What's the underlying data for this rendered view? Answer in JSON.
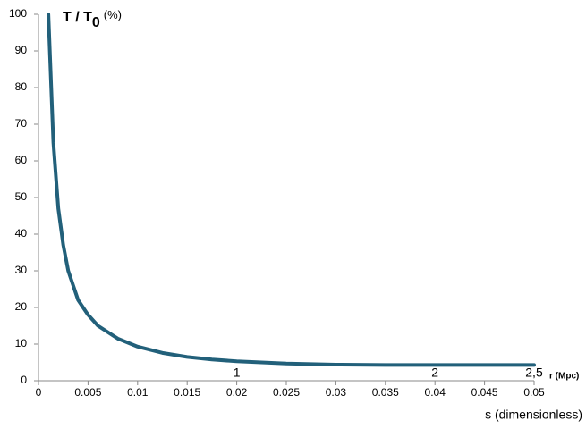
{
  "chart_data": {
    "type": "line",
    "y_label": "T / T",
    "y_label_sub": "0",
    "y_label_unit": "(%)",
    "x_label": "s (dimensionless)",
    "x2_label": "r (Mpc)",
    "x": [
      0.001,
      0.0015,
      0.002,
      0.0025,
      0.003,
      0.004,
      0.005,
      0.006,
      0.008,
      0.01,
      0.0125,
      0.015,
      0.0175,
      0.02,
      0.025,
      0.03,
      0.035,
      0.04,
      0.045,
      0.05
    ],
    "series": [
      {
        "name": "T / T0",
        "color": "#22607a",
        "values": [
          100,
          65,
          47,
          37,
          30,
          22,
          18,
          15,
          11.5,
          9.3,
          7.6,
          6.5,
          5.8,
          5.3,
          4.7,
          4.4,
          4.3,
          4.3,
          4.3,
          4.3
        ]
      }
    ],
    "xlim": [
      0,
      0.05
    ],
    "xticks": [
      0,
      0.005,
      0.01,
      0.015,
      0.02,
      0.025,
      0.03,
      0.035,
      0.04,
      0.045,
      0.05
    ],
    "ylim": [
      0,
      100
    ],
    "yticks": [
      0,
      10,
      20,
      30,
      40,
      50,
      60,
      70,
      80,
      90,
      100
    ],
    "x2lim": [
      0,
      2.5
    ],
    "x2ticks": [
      1,
      2,
      {
        "value": 2.5,
        "label": "2,5"
      }
    ],
    "grid": false
  }
}
